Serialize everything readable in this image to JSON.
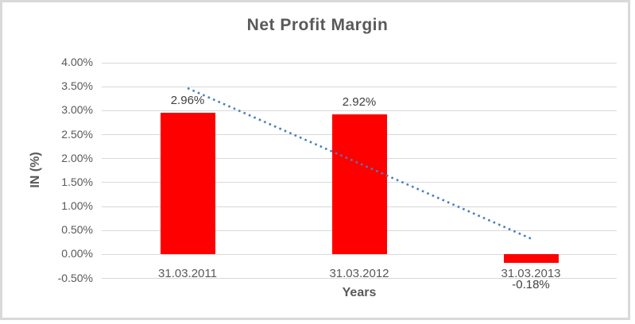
{
  "chart_data": {
    "type": "bar",
    "title": "Net Profit Margin",
    "xlabel": "Years",
    "ylabel": "IN (%)",
    "categories": [
      "31.03.2011",
      "31.03.2012",
      "31.03.2013"
    ],
    "values": [
      2.96,
      2.92,
      -0.18
    ],
    "value_labels": [
      "2.96%",
      "2.92%",
      "-0.18%"
    ],
    "ylim": [
      -0.5,
      4.0
    ],
    "ytick_step": 0.5,
    "ytick_labels": [
      "4.00%",
      "3.50%",
      "3.00%",
      "2.50%",
      "2.00%",
      "1.50%",
      "1.00%",
      "0.50%",
      "0.00%",
      "-0.50%"
    ],
    "grid": true,
    "legend": "none",
    "trendline": {
      "style": "dotted",
      "start_value": 3.47,
      "end_value": 0.33
    },
    "colors": {
      "bar": "#ff0000",
      "trendline": "#4a7ebb",
      "gridline": "#d9d9d9",
      "frame_border": "#d9d9d9",
      "title_text": "#595959",
      "axis_text": "#595959",
      "data_label_text": "#404040"
    }
  }
}
